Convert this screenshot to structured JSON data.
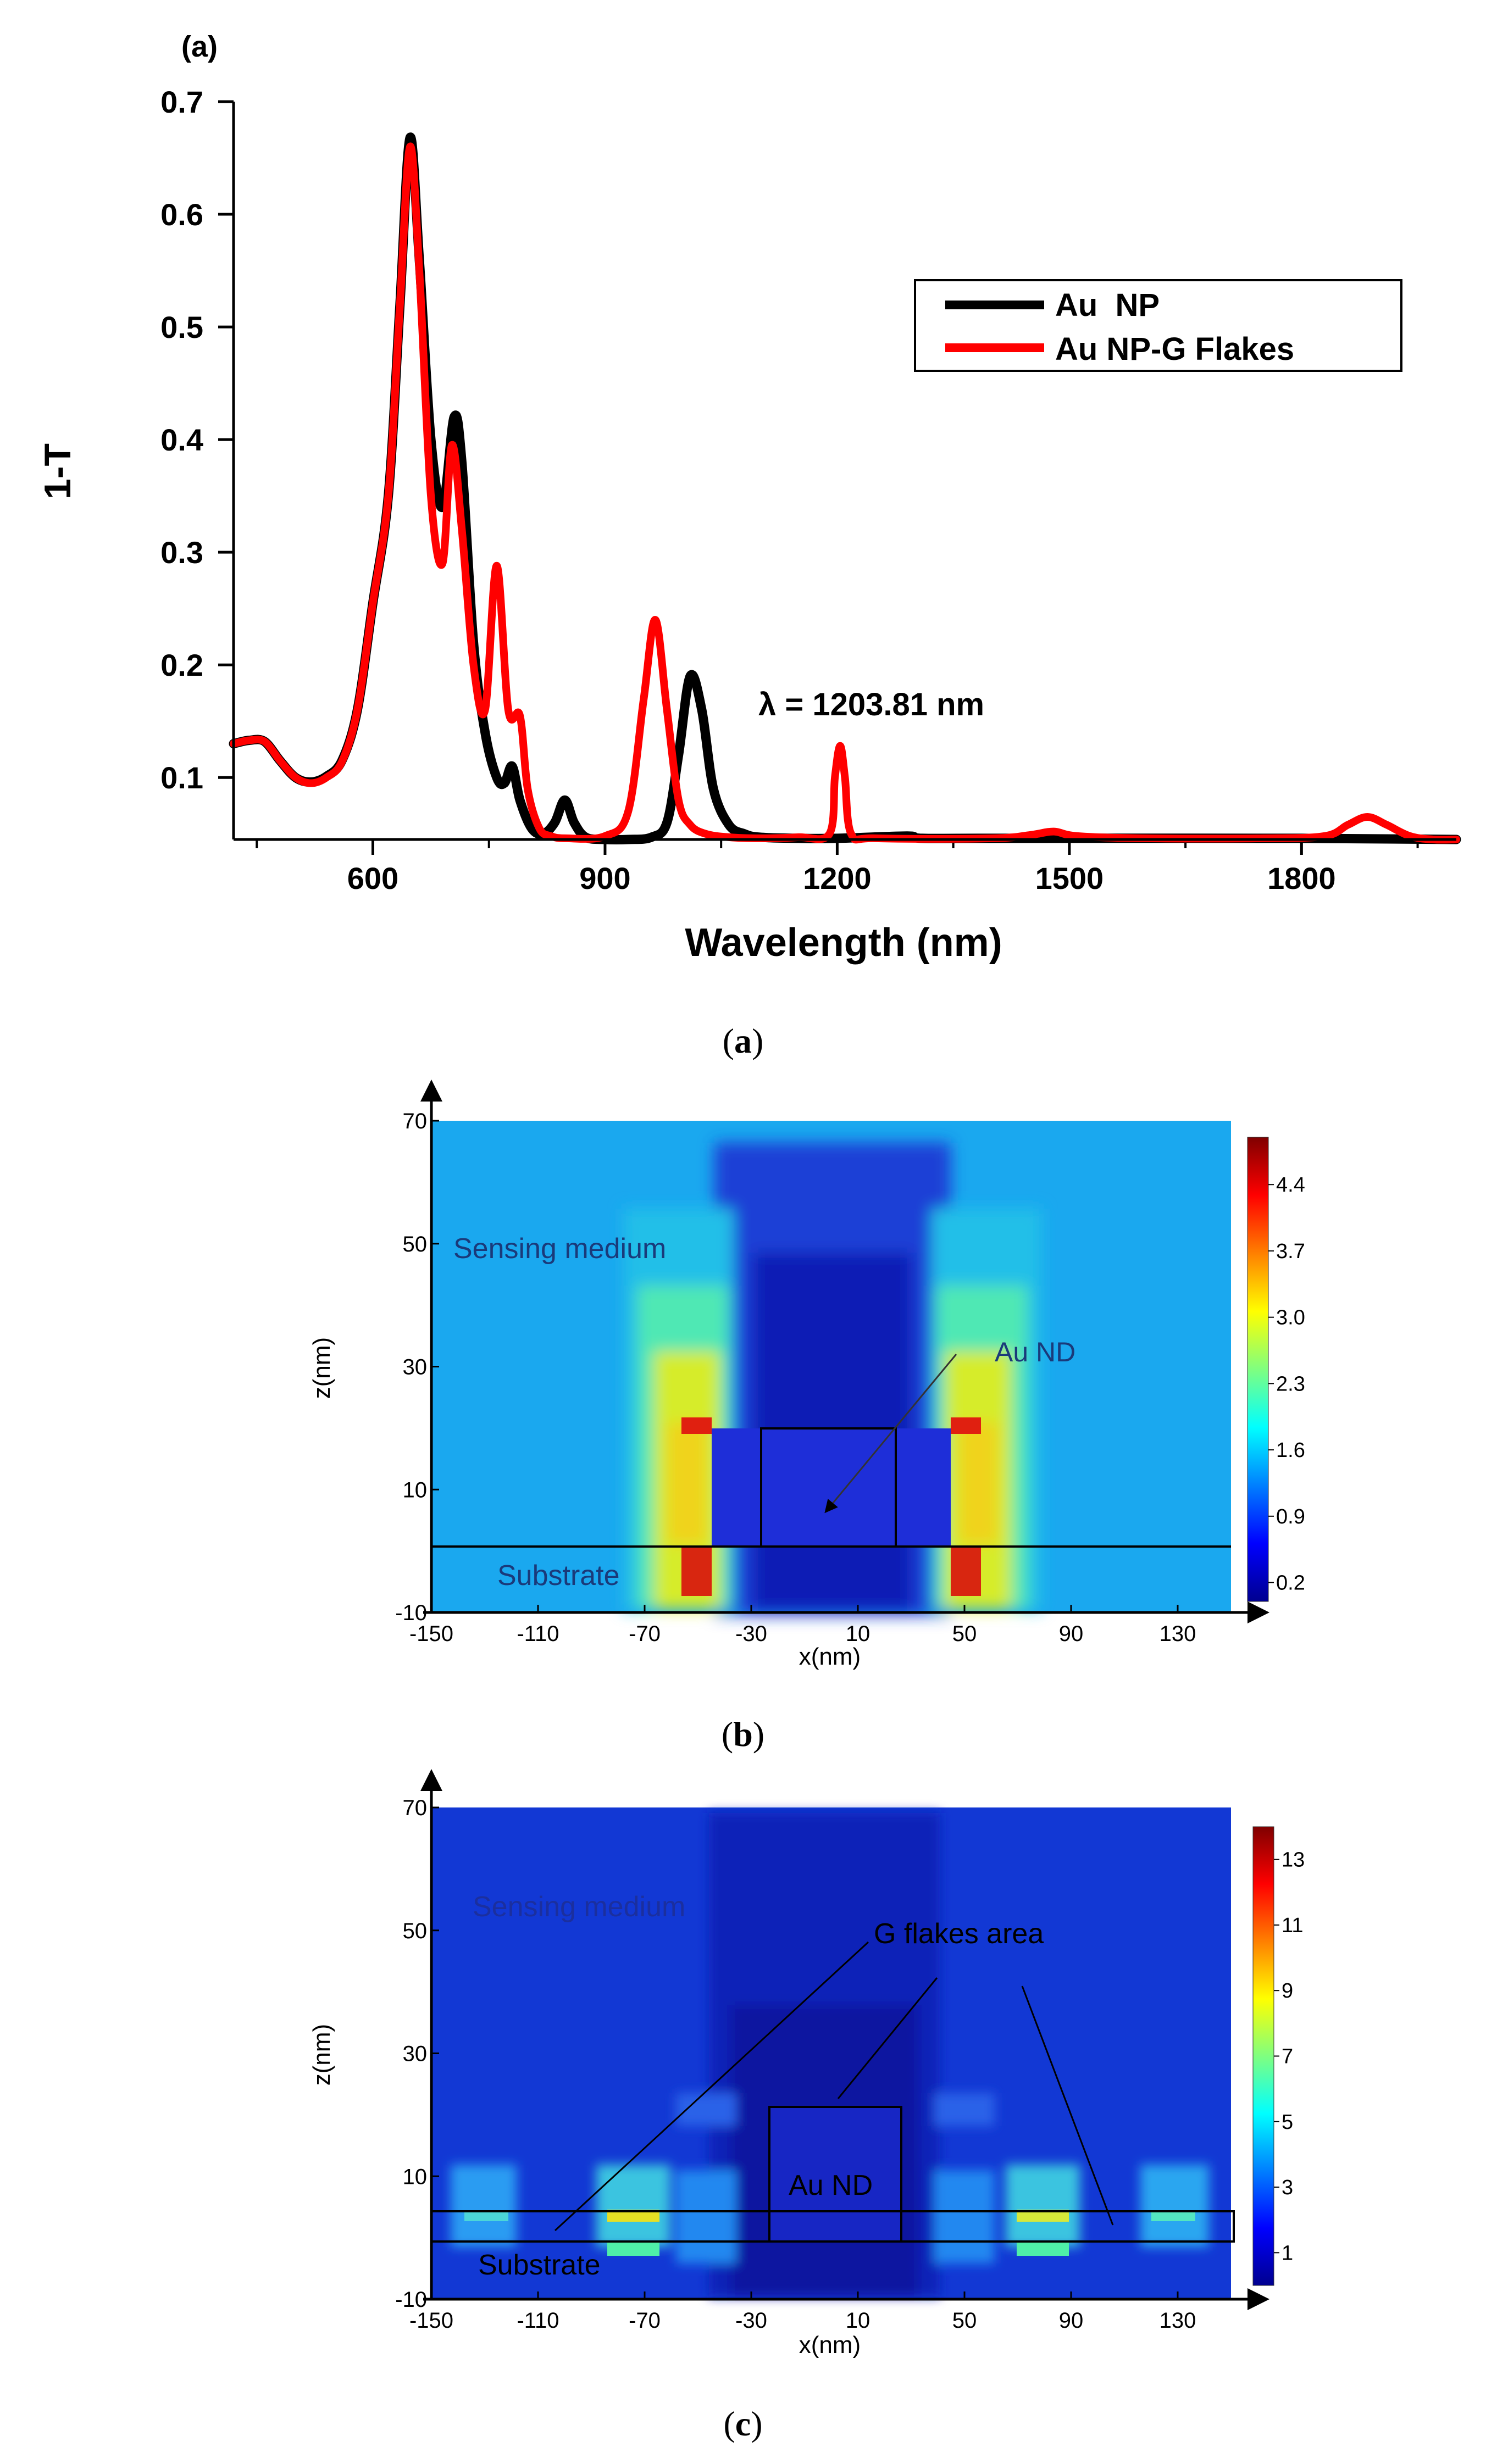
{
  "figure": {
    "caption_a": "a",
    "caption_b": "b",
    "caption_c": "c"
  },
  "chart_data": [
    {
      "type": "line",
      "panel_label": "(a)",
      "title": "",
      "xlabel": "Wavelength (nm)",
      "ylabel": "1-T",
      "xlim": [
        420,
        2000
      ],
      "ylim": [
        0.045,
        0.7
      ],
      "xticks": [
        600,
        900,
        1200,
        1500,
        1800
      ],
      "yticks": [
        0.1,
        0.2,
        0.3,
        0.4,
        0.5,
        0.6,
        0.7
      ],
      "annotation": "λ = 1203.81 nm",
      "legend_position": "upper-right",
      "series": [
        {
          "name": "Au  NP",
          "color": "#000000",
          "points": [
            [
              420,
              0.13
            ],
            [
              440,
              0.133
            ],
            [
              460,
              0.132
            ],
            [
              480,
              0.115
            ],
            [
              500,
              0.1
            ],
            [
              520,
              0.096
            ],
            [
              540,
              0.101
            ],
            [
              560,
              0.115
            ],
            [
              580,
              0.16
            ],
            [
              600,
              0.255
            ],
            [
              620,
              0.35
            ],
            [
              635,
              0.52
            ],
            [
              648,
              0.668
            ],
            [
              660,
              0.56
            ],
            [
              675,
              0.4
            ],
            [
              690,
              0.34
            ],
            [
              705,
              0.42
            ],
            [
              715,
              0.38
            ],
            [
              730,
              0.22
            ],
            [
              745,
              0.14
            ],
            [
              760,
              0.1
            ],
            [
              770,
              0.095
            ],
            [
              780,
              0.11
            ],
            [
              790,
              0.08
            ],
            [
              805,
              0.055
            ],
            [
              820,
              0.05
            ],
            [
              835,
              0.06
            ],
            [
              848,
              0.08
            ],
            [
              860,
              0.06
            ],
            [
              875,
              0.047
            ],
            [
              900,
              0.045
            ],
            [
              930,
              0.045
            ],
            [
              960,
              0.047
            ],
            [
              980,
              0.06
            ],
            [
              995,
              0.12
            ],
            [
              1010,
              0.19
            ],
            [
              1025,
              0.16
            ],
            [
              1040,
              0.09
            ],
            [
              1060,
              0.058
            ],
            [
              1080,
              0.05
            ],
            [
              1100,
              0.047
            ],
            [
              1150,
              0.046
            ],
            [
              1200,
              0.046
            ],
            [
              1290,
              0.048
            ],
            [
              1310,
              0.046
            ],
            [
              1400,
              0.046
            ],
            [
              1800,
              0.046
            ],
            [
              2000,
              0.045
            ]
          ]
        },
        {
          "name": "Au NP-G Flakes",
          "color": "#ff0000",
          "points": [
            [
              420,
              0.13
            ],
            [
              440,
              0.133
            ],
            [
              460,
              0.132
            ],
            [
              480,
              0.115
            ],
            [
              500,
              0.1
            ],
            [
              520,
              0.095
            ],
            [
              540,
              0.1
            ],
            [
              560,
              0.114
            ],
            [
              580,
              0.16
            ],
            [
              600,
              0.255
            ],
            [
              620,
              0.35
            ],
            [
              635,
              0.52
            ],
            [
              648,
              0.66
            ],
            [
              660,
              0.55
            ],
            [
              675,
              0.35
            ],
            [
              690,
              0.29
            ],
            [
              702,
              0.395
            ],
            [
              715,
              0.32
            ],
            [
              730,
              0.2
            ],
            [
              745,
              0.16
            ],
            [
              760,
              0.288
            ],
            [
              775,
              0.16
            ],
            [
              790,
              0.155
            ],
            [
              800,
              0.09
            ],
            [
              815,
              0.055
            ],
            [
              830,
              0.048
            ],
            [
              850,
              0.046
            ],
            [
              900,
              0.048
            ],
            [
              930,
              0.07
            ],
            [
              950,
              0.17
            ],
            [
              965,
              0.24
            ],
            [
              980,
              0.16
            ],
            [
              995,
              0.08
            ],
            [
              1010,
              0.058
            ],
            [
              1030,
              0.05
            ],
            [
              1060,
              0.047
            ],
            [
              1100,
              0.046
            ],
            [
              1150,
              0.047
            ],
            [
              1190,
              0.05
            ],
            [
              1197,
              0.1
            ],
            [
              1203.81,
              0.128
            ],
            [
              1210,
              0.1
            ],
            [
              1218,
              0.05
            ],
            [
              1250,
              0.046
            ],
            [
              1400,
              0.046
            ],
            [
              1450,
              0.049
            ],
            [
              1480,
              0.052
            ],
            [
              1510,
              0.048
            ],
            [
              1600,
              0.046
            ],
            [
              1750,
              0.046
            ],
            [
              1830,
              0.048
            ],
            [
              1860,
              0.058
            ],
            [
              1885,
              0.065
            ],
            [
              1910,
              0.058
            ],
            [
              1940,
              0.048
            ],
            [
              1970,
              0.045
            ],
            [
              2000,
              0.045
            ]
          ]
        }
      ]
    },
    {
      "type": "heatmap",
      "panel_label": "(b)",
      "xlabel": "x(nm)",
      "ylabel": "z(nm)",
      "xlim": [
        -150,
        150
      ],
      "ylim": [
        -10,
        70
      ],
      "xticks": [
        -150,
        -110,
        -70,
        -30,
        10,
        50,
        90,
        130
      ],
      "yticks": [
        -10,
        10,
        30,
        50,
        70
      ],
      "colorbar_ticks": [
        "0.2",
        "0.9",
        "1.6",
        "2.3",
        "3.0",
        "3.7",
        "4.4"
      ],
      "colorbar_range": [
        0,
        4.9
      ],
      "annotations": [
        "Sensing medium",
        "Au ND",
        "Substrate"
      ]
    },
    {
      "type": "heatmap",
      "panel_label": "(c)",
      "xlabel": "x(nm)",
      "ylabel": "z(nm)",
      "xlim": [
        -150,
        150
      ],
      "ylim": [
        -10,
        70
      ],
      "xticks": [
        -150,
        -110,
        -70,
        -30,
        10,
        50,
        90,
        130
      ],
      "yticks": [
        -10,
        10,
        30,
        50,
        70
      ],
      "colorbar_ticks": [
        "1",
        "3",
        "5",
        "7",
        "9",
        "11",
        "13"
      ],
      "colorbar_range": [
        0,
        14
      ],
      "annotations": [
        "Sensing medium",
        "G flakes area",
        "Au ND",
        "Substrate"
      ]
    }
  ]
}
